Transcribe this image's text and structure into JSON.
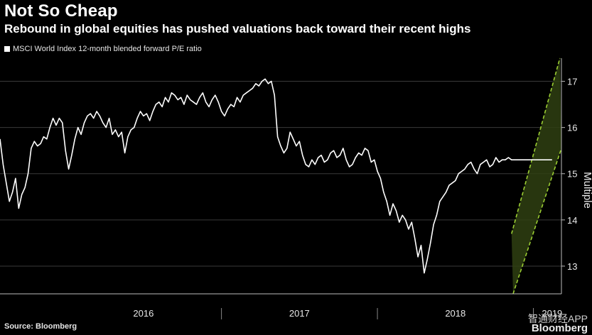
{
  "header": {
    "title": "Not So Cheap",
    "subtitle": "Rebound in global equities has pushed valuations back toward their recent highs"
  },
  "legend": {
    "label": "MSCI World Index 12-month blended forward P/E ratio"
  },
  "footer": {
    "source": "Source: Bloomberg",
    "watermark_cn": "智通财经APP",
    "watermark_brand": "Bloomberg"
  },
  "colors": {
    "background": "#000000",
    "line": "#ffffff",
    "grid": "#3a3a3a",
    "channel": "#9acd32",
    "channel_fill": "#2f3f12"
  },
  "chart_data": {
    "type": "line",
    "title": "Not So Cheap",
    "ylabel": "Multiple",
    "xlabel": "",
    "ylim": [
      12.4,
      17.5
    ],
    "xlim": [
      2015.58,
      2019.18
    ],
    "y_ticks": [
      13,
      14,
      15,
      16,
      17
    ],
    "x_ticks": [
      {
        "label": "2016",
        "pos": 2016.5
      },
      {
        "label": "2017",
        "pos": 2017.5
      },
      {
        "label": "2018",
        "pos": 2018.5
      },
      {
        "label": "2019",
        "pos": 2019.12
      }
    ],
    "year_boundaries": [
      2017.0,
      2018.0,
      2019.0
    ],
    "series": [
      {
        "name": "MSCI World Index 12-month blended forward P/E ratio",
        "x": [
          2015.58,
          2015.6,
          2015.62,
          2015.64,
          2015.66,
          2015.68,
          2015.7,
          2015.72,
          2015.74,
          2015.76,
          2015.78,
          2015.8,
          2015.82,
          2015.84,
          2015.86,
          2015.88,
          2015.9,
          2015.92,
          2015.94,
          2015.96,
          2015.98,
          2016.0,
          2016.02,
          2016.04,
          2016.06,
          2016.08,
          2016.1,
          2016.12,
          2016.14,
          2016.16,
          2016.18,
          2016.2,
          2016.22,
          2016.24,
          2016.26,
          2016.28,
          2016.3,
          2016.32,
          2016.34,
          2016.36,
          2016.38,
          2016.4,
          2016.42,
          2016.44,
          2016.46,
          2016.48,
          2016.5,
          2016.52,
          2016.54,
          2016.56,
          2016.58,
          2016.6,
          2016.62,
          2016.64,
          2016.66,
          2016.68,
          2016.7,
          2016.72,
          2016.74,
          2016.76,
          2016.78,
          2016.8,
          2016.82,
          2016.84,
          2016.86,
          2016.88,
          2016.9,
          2016.92,
          2016.94,
          2016.96,
          2016.98,
          2017.0,
          2017.02,
          2017.04,
          2017.06,
          2017.08,
          2017.1,
          2017.12,
          2017.14,
          2017.16,
          2017.18,
          2017.2,
          2017.22,
          2017.24,
          2017.26,
          2017.28,
          2017.3,
          2017.32,
          2017.34,
          2017.36,
          2017.38,
          2017.4,
          2017.42,
          2017.44,
          2017.46,
          2017.48,
          2017.5,
          2017.52,
          2017.54,
          2017.56,
          2017.58,
          2017.6,
          2017.62,
          2017.64,
          2017.66,
          2017.68,
          2017.7,
          2017.72,
          2017.74,
          2017.76,
          2017.78,
          2017.8,
          2017.82,
          2017.84,
          2017.86,
          2017.88,
          2017.9,
          2017.92,
          2017.94,
          2017.96,
          2017.98,
          2018.0,
          2018.02,
          2018.04,
          2018.06,
          2018.08,
          2018.1,
          2018.12,
          2018.14,
          2018.16,
          2018.18,
          2018.2,
          2018.22,
          2018.24,
          2018.26,
          2018.28,
          2018.3,
          2018.32,
          2018.34,
          2018.36,
          2018.38,
          2018.4,
          2018.42,
          2018.44,
          2018.46,
          2018.48,
          2018.5,
          2018.52,
          2018.54,
          2018.56,
          2018.58,
          2018.6,
          2018.62,
          2018.64,
          2018.66,
          2018.68,
          2018.7,
          2018.72,
          2018.74,
          2018.76,
          2018.78,
          2018.8,
          2018.82,
          2018.84,
          2018.86,
          2018.88,
          2018.9,
          2018.92,
          2018.94,
          2018.96,
          2018.98,
          2019.0,
          2019.02,
          2019.04,
          2019.06,
          2019.08,
          2019.1,
          2019.12
        ],
        "values": [
          15.75,
          15.2,
          14.8,
          14.4,
          14.6,
          14.9,
          14.25,
          14.55,
          14.7,
          15.0,
          15.55,
          15.7,
          15.6,
          15.65,
          15.8,
          15.75,
          16.0,
          16.2,
          16.05,
          16.2,
          16.1,
          15.5,
          15.1,
          15.4,
          15.75,
          16.0,
          15.85,
          16.1,
          16.25,
          16.3,
          16.2,
          16.35,
          16.25,
          16.1,
          16.0,
          16.2,
          15.85,
          15.95,
          15.8,
          15.9,
          15.45,
          15.8,
          15.95,
          16.0,
          16.2,
          16.35,
          16.25,
          16.3,
          16.15,
          16.35,
          16.5,
          16.55,
          16.45,
          16.65,
          16.55,
          16.75,
          16.7,
          16.6,
          16.65,
          16.5,
          16.7,
          16.6,
          16.55,
          16.5,
          16.65,
          16.75,
          16.55,
          16.45,
          16.6,
          16.7,
          16.55,
          16.35,
          16.25,
          16.4,
          16.5,
          16.45,
          16.65,
          16.55,
          16.7,
          16.75,
          16.8,
          16.85,
          16.95,
          16.9,
          17.0,
          17.05,
          16.95,
          17.0,
          16.7,
          15.8,
          15.6,
          15.45,
          15.55,
          15.9,
          15.75,
          15.6,
          15.7,
          15.4,
          15.2,
          15.15,
          15.3,
          15.2,
          15.35,
          15.4,
          15.25,
          15.3,
          15.45,
          15.5,
          15.35,
          15.4,
          15.55,
          15.3,
          15.15,
          15.2,
          15.35,
          15.45,
          15.4,
          15.55,
          15.5,
          15.25,
          15.3,
          15.05,
          14.9,
          14.6,
          14.4,
          14.1,
          14.35,
          14.2,
          13.95,
          14.1,
          14.0,
          13.8,
          13.95,
          13.6,
          13.2,
          13.45,
          12.85,
          13.15,
          13.5,
          13.9,
          14.1,
          14.4,
          14.5,
          14.6,
          14.75,
          14.8,
          14.85,
          15.0,
          15.05,
          15.1,
          15.2,
          15.25,
          15.1,
          15.0,
          15.2,
          15.25,
          15.3,
          15.15,
          15.2,
          15.35,
          15.25,
          15.3,
          15.3,
          15.35,
          15.3,
          15.3,
          15.3,
          15.3,
          15.3,
          15.3,
          15.3,
          15.3,
          15.3,
          15.3,
          15.3,
          15.3,
          15.3,
          15.3
        ]
      }
    ],
    "annotations": [
      {
        "type": "channel",
        "label": "",
        "upper": [
          [
            2018.86,
            13.7
          ],
          [
            2019.17,
            17.5
          ]
        ],
        "lower": [
          [
            2018.87,
            12.4
          ],
          [
            2019.18,
            15.55
          ]
        ]
      }
    ]
  }
}
